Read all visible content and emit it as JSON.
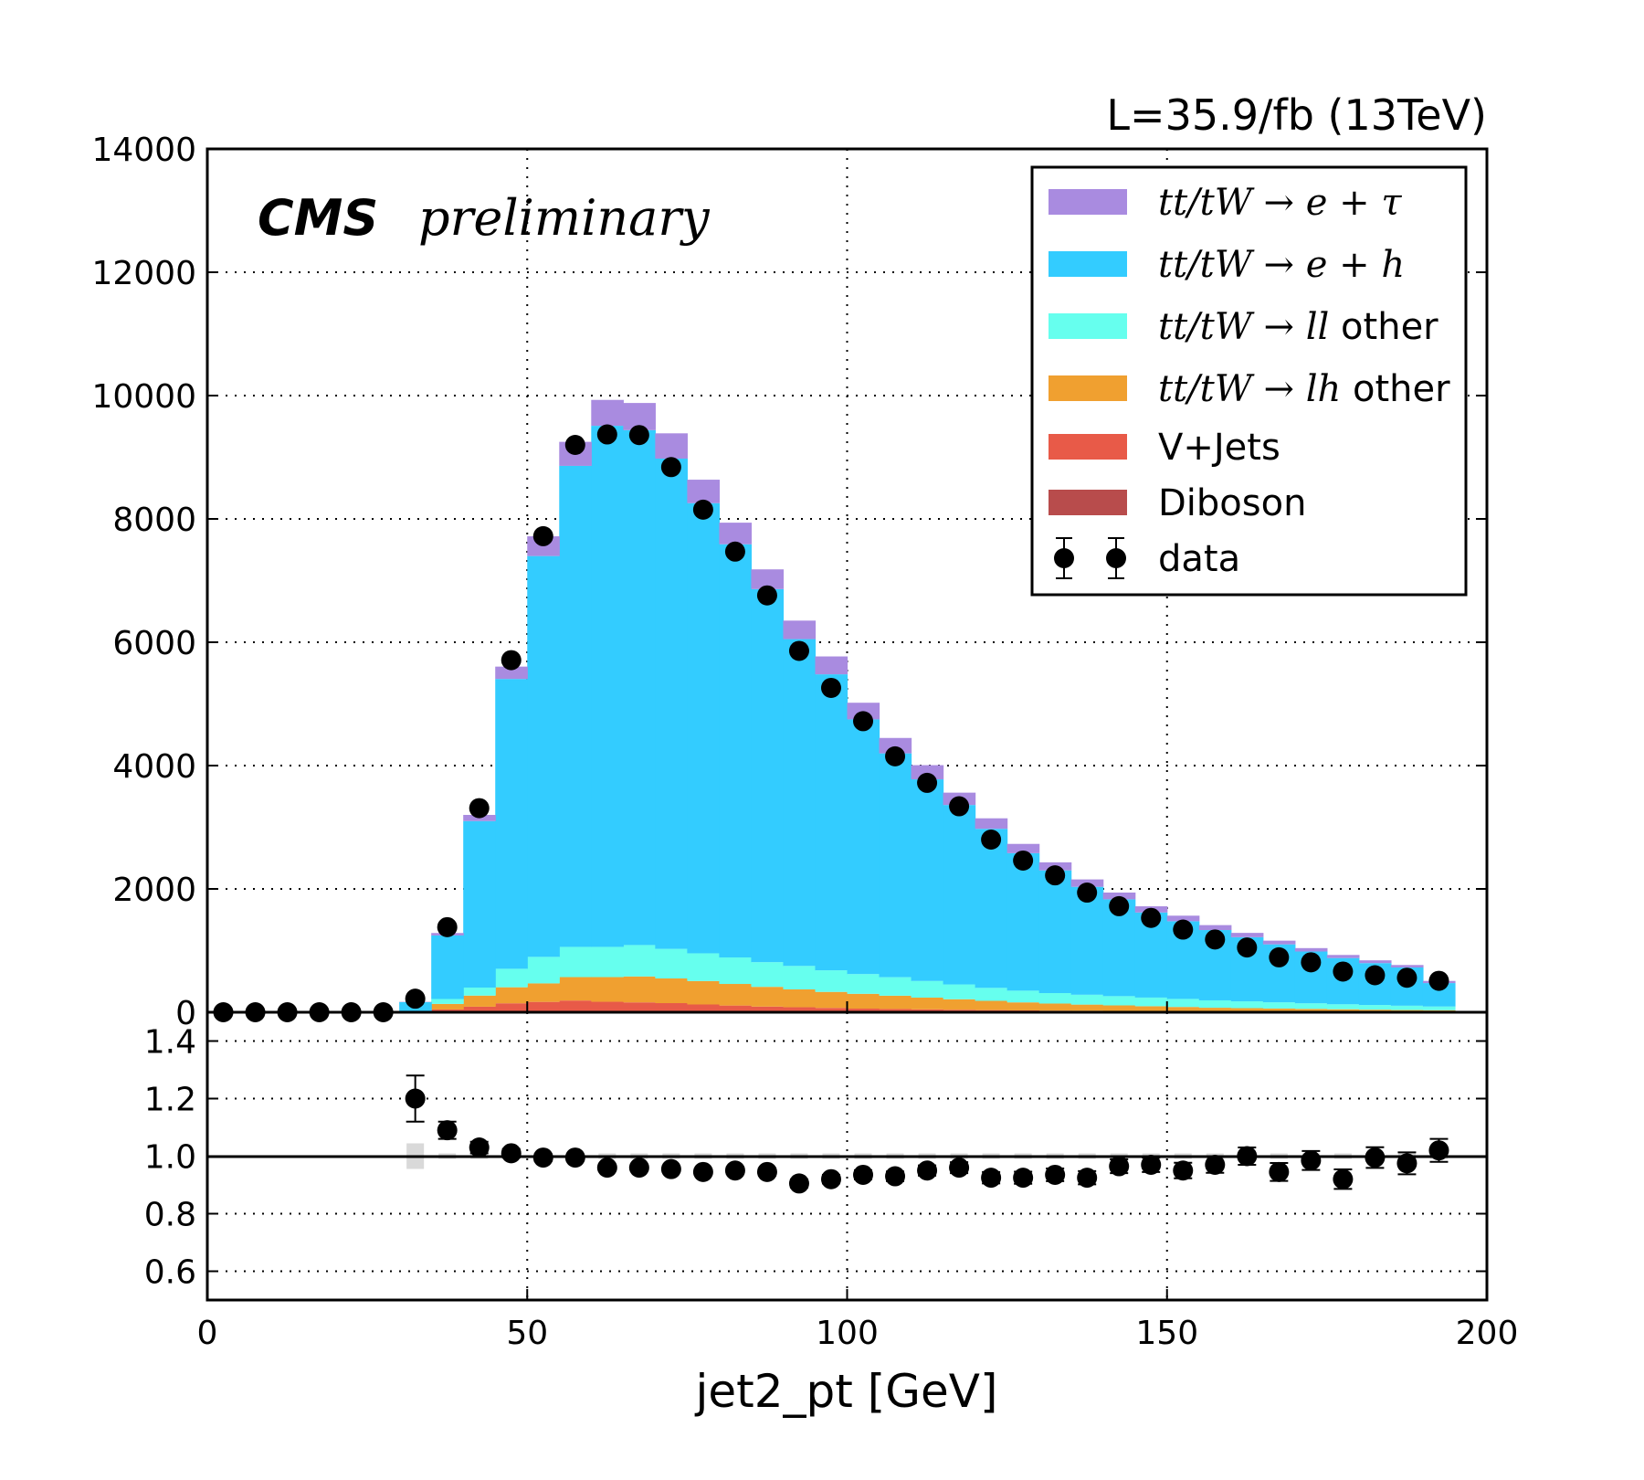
{
  "lumi_text": "L=35.9/fb (13TeV)",
  "experiment_label": "CMS",
  "status_label": "preliminary",
  "chart_data": [
    {
      "type": "bar",
      "stacked": true,
      "x_bin_centers": [
        2.5,
        7.5,
        12.5,
        17.5,
        22.5,
        27.5,
        32.5,
        37.5,
        42.5,
        47.5,
        52.5,
        57.5,
        62.5,
        67.5,
        72.5,
        77.5,
        82.5,
        87.5,
        92.5,
        97.5,
        102.5,
        107.5,
        112.5,
        117.5,
        122.5,
        127.5,
        132.5,
        137.5,
        142.5,
        147.5,
        152.5,
        157.5,
        162.5,
        167.5,
        172.5,
        177.5,
        182.5,
        187.5,
        192.5
      ],
      "bin_width": 5,
      "xlim": [
        0,
        200
      ],
      "ylim": [
        0,
        14000
      ],
      "yticks": [
        "0",
        "2000",
        "4000",
        "6000",
        "8000",
        "10000",
        "12000",
        "14000"
      ],
      "grid": true,
      "legend_position": "top-right",
      "series": [
        {
          "name": "Diboson",
          "color": "#b84c4c",
          "values": [
            0,
            0,
            0,
            0,
            0,
            0,
            0,
            5,
            10,
            15,
            18,
            20,
            20,
            20,
            18,
            16,
            14,
            12,
            11,
            10,
            9,
            8,
            7,
            6,
            5,
            5,
            4,
            4,
            3,
            3,
            3,
            2,
            2,
            2,
            2,
            2,
            1,
            1,
            1
          ]
        },
        {
          "name": "V+Jets",
          "color": "#e85a48",
          "values": [
            0,
            0,
            0,
            0,
            0,
            0,
            0,
            40,
            80,
            130,
            150,
            170,
            150,
            140,
            130,
            110,
            95,
            80,
            70,
            60,
            50,
            45,
            40,
            35,
            30,
            25,
            22,
            20,
            18,
            15,
            13,
            11,
            10,
            9,
            8,
            7,
            6,
            5,
            4
          ]
        },
        {
          "name": "tt/tW→lh other",
          "color": "#f0a030",
          "values": [
            0,
            0,
            0,
            0,
            0,
            0,
            5,
            90,
            180,
            260,
            300,
            380,
            400,
            420,
            400,
            380,
            350,
            320,
            290,
            260,
            240,
            215,
            190,
            170,
            150,
            130,
            115,
            100,
            90,
            80,
            70,
            60,
            55,
            50,
            45,
            40,
            35,
            30,
            28
          ]
        },
        {
          "name": "tt/tW→ll other",
          "color": "#66ffee",
          "values": [
            0,
            0,
            0,
            0,
            0,
            0,
            10,
            80,
            130,
            300,
            430,
            490,
            490,
            510,
            480,
            450,
            430,
            400,
            380,
            350,
            320,
            300,
            270,
            240,
            210,
            190,
            170,
            160,
            150,
            140,
            130,
            120,
            110,
            100,
            90,
            80,
            75,
            70,
            60
          ]
        },
        {
          "name": "tt/tW→e+h",
          "color": "#33ccff",
          "values": [
            0,
            0,
            0,
            0,
            0,
            0,
            150,
            1030,
            2700,
            4700,
            6500,
            7800,
            8450,
            8350,
            7950,
            7300,
            6700,
            6050,
            5300,
            4800,
            4130,
            3630,
            3270,
            2910,
            2580,
            2230,
            1990,
            1750,
            1570,
            1380,
            1260,
            1140,
            1040,
            940,
            840,
            750,
            680,
            620,
            380
          ]
        },
        {
          "name": "tt/tW→e+τ",
          "color": "#a98be0",
          "values": [
            0,
            0,
            0,
            0,
            0,
            0,
            5,
            40,
            100,
            200,
            320,
            390,
            420,
            440,
            410,
            380,
            350,
            320,
            300,
            290,
            270,
            250,
            230,
            200,
            170,
            150,
            130,
            120,
            110,
            100,
            90,
            80,
            70,
            60,
            55,
            50,
            45,
            40,
            35
          ]
        }
      ],
      "data": {
        "name": "data",
        "values": [
          0,
          0,
          0,
          0,
          0,
          0,
          220,
          1380,
          3310,
          5710,
          7720,
          9200,
          9370,
          9360,
          8840,
          8150,
          7470,
          6760,
          5860,
          5260,
          4720,
          4150,
          3720,
          3340,
          2800,
          2460,
          2220,
          1940,
          1720,
          1530,
          1340,
          1180,
          1050,
          890,
          810,
          660,
          600,
          560,
          510
        ]
      }
    },
    {
      "type": "scatter",
      "role": "ratio",
      "x_bin_centers": [
        32.5,
        37.5,
        42.5,
        47.5,
        52.5,
        57.5,
        62.5,
        67.5,
        72.5,
        77.5,
        82.5,
        87.5,
        92.5,
        97.5,
        102.5,
        107.5,
        112.5,
        117.5,
        122.5,
        127.5,
        132.5,
        137.5,
        142.5,
        147.5,
        152.5,
        157.5,
        162.5,
        167.5,
        172.5,
        177.5,
        182.5,
        187.5,
        192.5
      ],
      "values": [
        1.2,
        1.09,
        1.03,
        1.01,
        0.995,
        0.995,
        0.96,
        0.96,
        0.955,
        0.945,
        0.95,
        0.945,
        0.905,
        0.92,
        0.935,
        0.93,
        0.95,
        0.96,
        0.925,
        0.925,
        0.935,
        0.925,
        0.965,
        0.97,
        0.95,
        0.97,
        1.0,
        0.945,
        0.985,
        0.92,
        0.995,
        0.975,
        1.02
      ],
      "errors": [
        0.08,
        0.03,
        0.02,
        0.015,
        0.012,
        0.01,
        0.01,
        0.01,
        0.01,
        0.01,
        0.012,
        0.013,
        0.014,
        0.015,
        0.016,
        0.017,
        0.018,
        0.019,
        0.02,
        0.021,
        0.022,
        0.023,
        0.024,
        0.025,
        0.027,
        0.028,
        0.03,
        0.031,
        0.033,
        0.034,
        0.036,
        0.038,
        0.04
      ],
      "reference": 1.0,
      "ylim": [
        0.5,
        1.5
      ],
      "yticks": [
        "0.6",
        "0.8",
        "1.0",
        "1.2",
        "1.4"
      ],
      "xlim": [
        0,
        200
      ],
      "xticks": [
        "0",
        "50",
        "100",
        "150",
        "200"
      ],
      "xlabel": "jet2_pt [GeV]",
      "grid": true
    }
  ],
  "legend": [
    {
      "math": "tt/tW → e + τ",
      "text": "",
      "color": "#a98be0",
      "kind": "patch"
    },
    {
      "math": "tt/tW → e + h",
      "text": "",
      "color": "#33ccff",
      "kind": "patch"
    },
    {
      "math": "tt/tW → ll",
      "text": "other",
      "color": "#66ffee",
      "kind": "patch"
    },
    {
      "math": "tt/tW → lh",
      "text": "other",
      "color": "#f0a030",
      "kind": "patch"
    },
    {
      "math": "",
      "text": "V+Jets",
      "color": "#e85a48",
      "kind": "patch"
    },
    {
      "math": "",
      "text": "Diboson",
      "color": "#b84c4c",
      "kind": "patch"
    },
    {
      "math": "",
      "text": "data",
      "color": "#000000",
      "kind": "marker"
    }
  ]
}
